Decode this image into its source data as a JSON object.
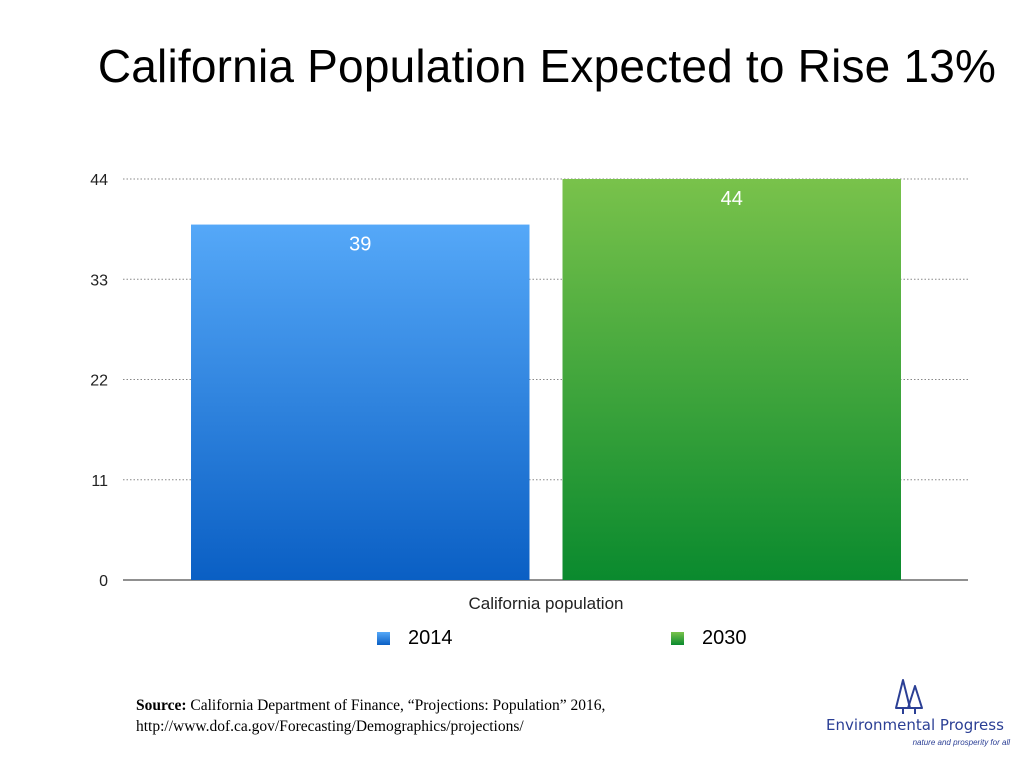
{
  "title": "California Population Expected to Rise 13%",
  "chart_data": {
    "type": "bar",
    "categories": [
      "California population"
    ],
    "series": [
      {
        "name": "2014",
        "values": [
          39
        ],
        "color_top": "#55a8f8",
        "color_bottom": "#0a5fc4"
      },
      {
        "name": "2030",
        "values": [
          44
        ],
        "color_top": "#79c24b",
        "color_bottom": "#0a8a2e"
      }
    ],
    "data_labels": [
      "39",
      "44"
    ],
    "ylim": [
      0,
      44
    ],
    "yticks": [
      0,
      11,
      22,
      33,
      44
    ],
    "grid": true,
    "legend": "bottom"
  },
  "source": {
    "label": "Source:",
    "text": "California Department of Finance, “Projections: Population” 2016, http://www.dof.ca.gov/Forecasting/Demographics/projections/"
  },
  "logo": {
    "name": "Environmental Progress",
    "tagline": "nature and prosperity for all",
    "icon": "trees-icon",
    "color": "#2b3f95"
  }
}
